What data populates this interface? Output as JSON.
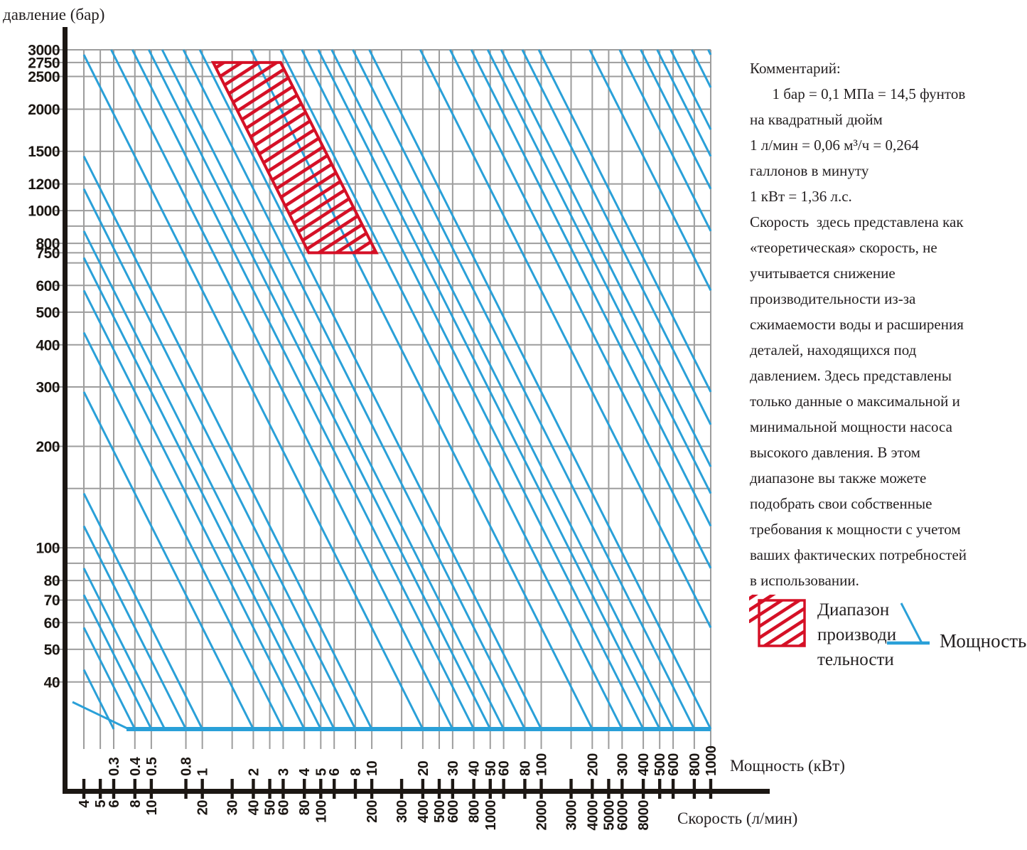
{
  "titles": {
    "pressure_axis": "давление  (бар)",
    "power_axis": "Мощность (кВт)",
    "flow_axis": "Скорость (л/мин)"
  },
  "comment": {
    "heading": "Комментарий:",
    "body": "      1 бар = 0,1 МПа = 14,5 фунтов\nна квадратный дюйм\n1 л/мин = 0,06 м³/ч = 0,264\nгаллонов в минуту\n1 кВт = 1,36 л.с.\nСкорость  здесь представлена как\n«теоретическая» скорость, не\nучитывается снижение\nпроизводительности из-за\nсжимаемости воды и расширения\nдеталей, находящихся под\nдавлением. Здесь представлены\nтолько данные о максимальной и\nминимальной мощности насоса\nвысокого давления. В этом\nдиапазоне вы также можете\nподобрать свои собственные\nтребования к мощности с учетом\nваших фактических потребностей\nв использовании."
  },
  "legend": {
    "performance_range_label": "Диапазон\nпроизводи\nтельности",
    "power_line_label": "Мощность"
  },
  "colors": {
    "blue": "#2aa0d8",
    "red": "#d51026",
    "grid": "#9d9d9d",
    "ink": "#1c1713"
  },
  "chart_data": {
    "type": "line",
    "title": "Nomogram: pressure (bar) vs flow (l/min) with constant-power lines (kW)",
    "x_axis_flow": {
      "label": "Скорость (л/мин)",
      "scale": "log",
      "range_lpm": [
        4,
        20000
      ],
      "tick_labels": [
        "4",
        "5",
        "6",
        "8",
        "10",
        "20",
        "30",
        "40",
        "50",
        "60",
        "80",
        "100",
        "200",
        "300",
        "400",
        "500",
        "600",
        "800",
        "1000",
        "2000",
        "3000",
        "4000",
        "5000",
        "6000",
        "8000"
      ]
    },
    "x_axis_power": {
      "label": "Мощность (кВт)",
      "scale": "log",
      "tick_labels": [
        "0.3",
        "0.4",
        "0.5",
        "0.8",
        "1",
        "2",
        "3",
        "4",
        "5",
        "6",
        "8",
        "10",
        "20",
        "30",
        "40",
        "50",
        "60",
        "80",
        "100",
        "200",
        "300",
        "400",
        "500",
        "600",
        "800",
        "1000"
      ],
      "flow_lpm_per_kw_at_baseline": 20
    },
    "y_axis": {
      "label": "давление (бар)",
      "scale": "log",
      "range_bar": [
        29,
        3000
      ],
      "tick_labels": [
        "3000",
        "2750",
        "2500",
        "2000",
        "1500",
        "1200",
        "1000",
        "800",
        "750",
        "600",
        "500",
        "400",
        "300",
        "200",
        "100",
        "80",
        "70",
        "60",
        "50",
        "40"
      ],
      "gridlines": [
        3000,
        2750,
        2500,
        2000,
        1500,
        1200,
        1000,
        900,
        800,
        750,
        700,
        600,
        500,
        400,
        300,
        200,
        150,
        100,
        90,
        80,
        70,
        60,
        50,
        40
      ]
    },
    "power_lines": {
      "relation": "pressure_bar * flow_lpm = const_factor * power_kw",
      "const_factor": 580,
      "per_decade_multipliers": [
        1,
        2,
        3,
        4,
        5,
        6,
        8
      ],
      "decade_range": [
        -1,
        5
      ],
      "baseline_pressure_bar": 29
    },
    "performance_range_polygon_flow_pressure": [
      [
        23.2,
        2750
      ],
      [
        58,
        2750
      ],
      [
        212.7,
        750
      ],
      [
        85,
        750
      ]
    ]
  }
}
